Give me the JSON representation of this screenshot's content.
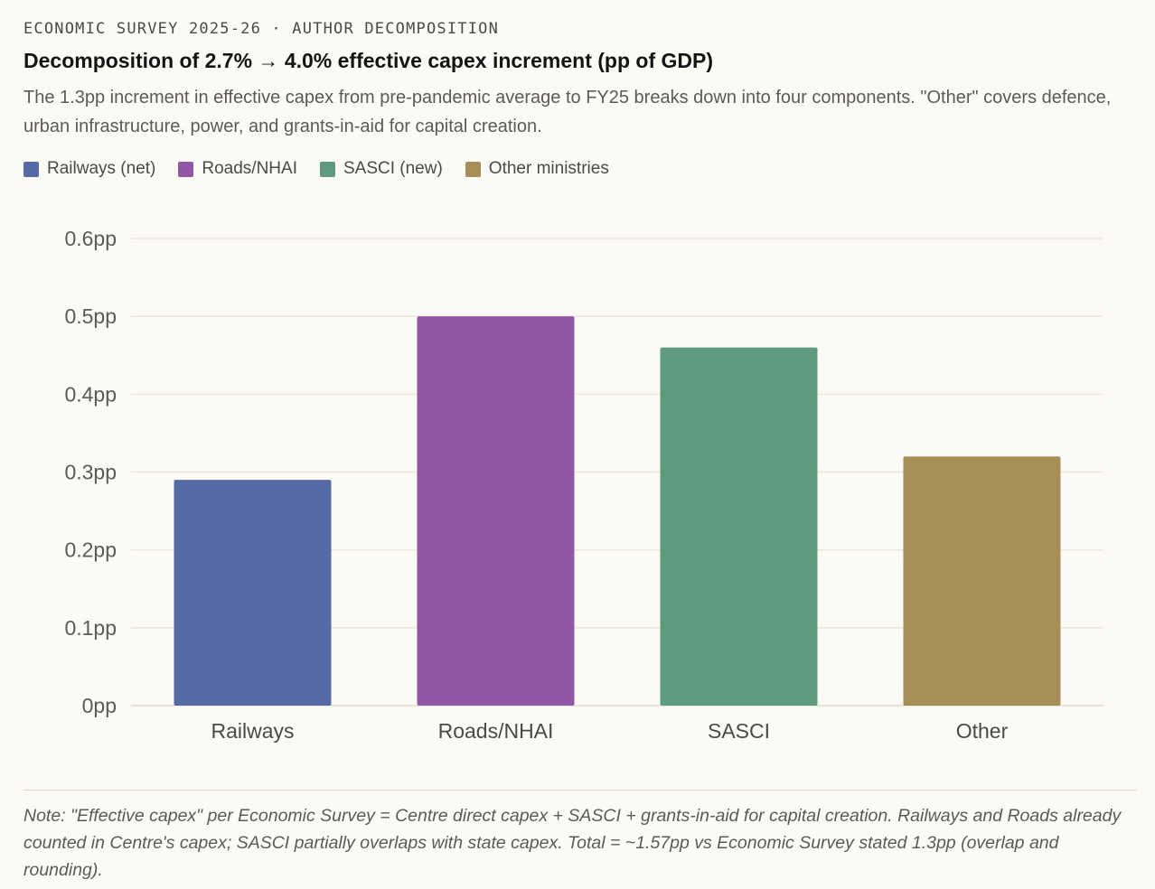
{
  "kicker": "ECONOMIC SURVEY 2025-26 · AUTHOR DECOMPOSITION",
  "title": "Decomposition of 2.7% → 4.0% effective capex increment (pp of GDP)",
  "subtitle": "The 1.3pp increment in effective capex from pre-pandemic average to FY25 breaks down into four components. \"Other\" covers defence, urban infrastructure, power, and grants-in-aid for capital creation.",
  "legend": [
    {
      "label": "Railways (net)",
      "color": "#566aa5"
    },
    {
      "label": "Roads/NHAI",
      "color": "#9256a6"
    },
    {
      "label": "SASCI (new)",
      "color": "#5f9a7e"
    },
    {
      "label": "Other ministries",
      "color": "#a78e59"
    }
  ],
  "chart_data": {
    "type": "bar",
    "title": "Decomposition of 2.7% → 4.0% effective capex increment (pp of GDP)",
    "categories": [
      "Railways",
      "Roads/NHAI",
      "SASCI",
      "Other"
    ],
    "values": [
      0.29,
      0.5,
      0.46,
      0.32
    ],
    "colors": [
      "#566aa5",
      "#9256a6",
      "#5f9a7e",
      "#a78e59"
    ],
    "ylim": [
      0,
      0.6
    ],
    "yticks": [
      0,
      0.1,
      0.2,
      0.3,
      0.4,
      0.5,
      0.6
    ],
    "ytick_labels": [
      "0pp",
      "0.1pp",
      "0.2pp",
      "0.3pp",
      "0.4pp",
      "0.5pp",
      "0.6pp"
    ],
    "xlabel": "",
    "ylabel": "",
    "grid": true,
    "legend_position": "top-left"
  },
  "note": "Note: \"Effective capex\" per Economic Survey = Centre direct capex + SASCI + grants-in-aid for capital creation. Railways and Roads already counted in Centre's capex; SASCI partially overlaps with state capex. Total = ~1.57pp vs Economic Survey stated 1.3pp (overlap and rounding)."
}
